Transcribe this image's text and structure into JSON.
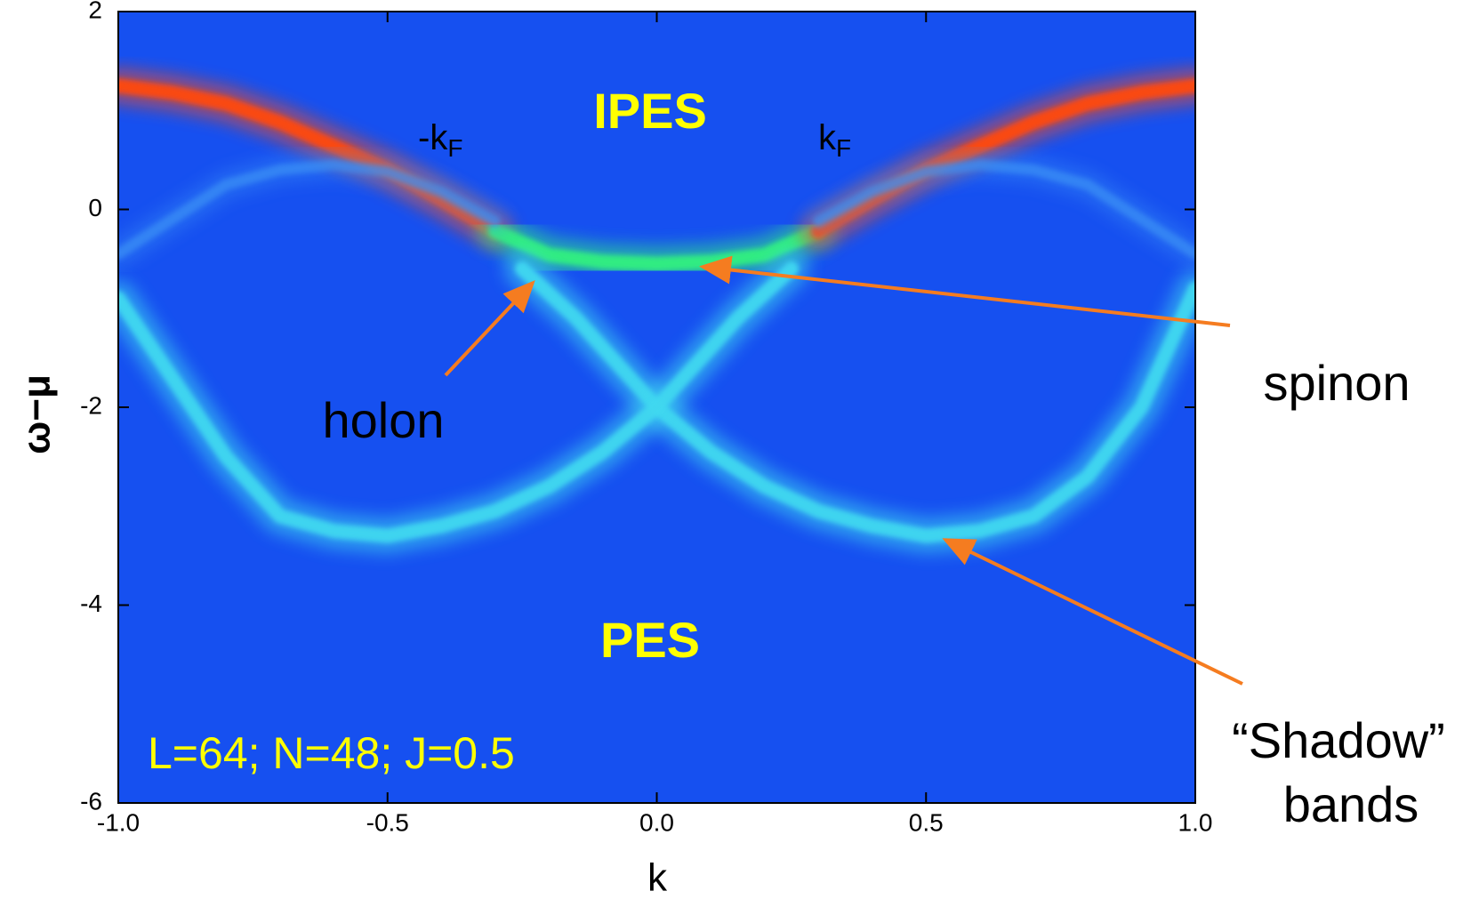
{
  "chart_data": {
    "type": "line",
    "x_label": "k",
    "y_label": "ω−μ",
    "background": "#1650f0",
    "xlim": [
      -1.0,
      1.0
    ],
    "xticks": [
      {
        "value": -1.0,
        "label": "-1.0"
      },
      {
        "value": -0.5,
        "label": "-0.5"
      },
      {
        "value": 0,
        "label": "0.0"
      },
      {
        "value": 0.5,
        "label": "0.5"
      },
      {
        "value": 1.0,
        "label": "1.0"
      }
    ],
    "ylim": [
      -6,
      2
    ],
    "yticks": [
      2,
      0,
      -2,
      -4,
      -6
    ],
    "series": [
      {
        "color": "#ff4a10",
        "x": [
          -1,
          -0.9,
          -0.8,
          -0.7,
          -0.6,
          -0.5,
          -0.4,
          -0.3
        ],
        "values": [
          1.25,
          1.18,
          1.07,
          0.88,
          0.64,
          0.4,
          0.1,
          -0.22
        ]
      },
      {
        "color": "#30f080",
        "x": [
          -0.3,
          -0.2,
          -0.1,
          0,
          0.1,
          0.2,
          0.3
        ],
        "values": [
          -0.22,
          -0.46,
          -0.53,
          -0.55,
          -0.53,
          -0.46,
          -0.22
        ]
      },
      {
        "color": "#ff4a10",
        "x": [
          0.3,
          0.4,
          0.5,
          0.6,
          0.7,
          0.8,
          0.9,
          1
        ],
        "values": [
          -0.22,
          0.1,
          0.4,
          0.64,
          0.88,
          1.07,
          1.18,
          1.25
        ]
      },
      {
        "color": "#40d8f0",
        "x": [
          -0.25,
          -0.15,
          -0.05,
          0,
          0.1,
          0.2,
          0.3,
          0.4,
          0.5,
          0.6,
          0.7,
          0.8,
          0.9,
          1.0
        ],
        "values": [
          -0.6,
          -1.1,
          -1.7,
          -2.0,
          -2.45,
          -2.8,
          -3.05,
          -3.2,
          -3.3,
          -3.25,
          -3.1,
          -2.7,
          -2.0,
          -0.8
        ]
      },
      {
        "color": "#40d8f0",
        "x": [
          0.25,
          0.15,
          0.05,
          0,
          -0.1,
          -0.2,
          -0.3,
          -0.4,
          -0.5,
          -0.6,
          -0.7,
          -0.8,
          -0.9,
          -1.0
        ],
        "values": [
          -0.6,
          -1.1,
          -1.7,
          -2.0,
          -2.45,
          -2.8,
          -3.05,
          -3.2,
          -3.3,
          -3.25,
          -3.1,
          -2.5,
          -1.7,
          -0.9
        ]
      },
      {
        "color": "#3a90f5",
        "x": [
          -1,
          -0.9,
          -0.8,
          -0.7,
          -0.6,
          -0.5,
          -0.4,
          -0.3
        ],
        "values": [
          -0.45,
          -0.1,
          0.25,
          0.4,
          0.45,
          0.38,
          0.18,
          -0.12
        ]
      },
      {
        "color": "#3a90f5",
        "x": [
          0.3,
          0.4,
          0.5,
          0.6,
          0.7,
          0.8,
          0.9,
          1
        ],
        "values": [
          -0.12,
          0.18,
          0.38,
          0.45,
          0.4,
          0.25,
          -0.1,
          -0.45
        ]
      }
    ],
    "annotations": [
      "IPES",
      "PES",
      "L=64; N=48; J=0.5",
      "holon",
      "spinon",
      "“Shadow”",
      "bands"
    ],
    "subscript_labels": [
      {
        "text": "-k",
        "sub": "F"
      },
      {
        "text": "k",
        "sub": "F"
      }
    ]
  }
}
